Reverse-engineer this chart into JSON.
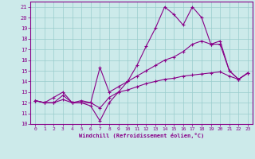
{
  "xlabel": "Windchill (Refroidissement éolien,°C)",
  "xlim": [
    -0.5,
    23.5
  ],
  "ylim": [
    10,
    21.5
  ],
  "yticks": [
    10,
    11,
    12,
    13,
    14,
    15,
    16,
    17,
    18,
    19,
    20,
    21
  ],
  "xticks": [
    0,
    1,
    2,
    3,
    4,
    5,
    6,
    7,
    8,
    9,
    10,
    11,
    12,
    13,
    14,
    15,
    16,
    17,
    18,
    19,
    20,
    21,
    22,
    23
  ],
  "bg_color": "#cceaea",
  "grid_color": "#99cccc",
  "line_color": "#880088",
  "line1_x": [
    0,
    1,
    2,
    3,
    4,
    5,
    6,
    7,
    8,
    9,
    10,
    11,
    12,
    13,
    14,
    15,
    16,
    17,
    18,
    19,
    20,
    21,
    22,
    23
  ],
  "line1_y": [
    12.2,
    12.0,
    12.0,
    12.7,
    12.0,
    12.0,
    11.7,
    10.3,
    12.0,
    13.0,
    14.0,
    15.5,
    17.3,
    19.0,
    21.0,
    20.3,
    19.3,
    21.0,
    20.0,
    17.5,
    17.8,
    15.0,
    14.2,
    14.8
  ],
  "line2_x": [
    0,
    1,
    2,
    3,
    4,
    5,
    6,
    7,
    8,
    9,
    10,
    11,
    12,
    13,
    14,
    15,
    16,
    17,
    18,
    19,
    20,
    21,
    22,
    23
  ],
  "line2_y": [
    12.2,
    12.0,
    12.5,
    13.0,
    12.0,
    12.2,
    12.0,
    15.3,
    13.0,
    13.5,
    14.0,
    14.5,
    15.0,
    15.5,
    16.0,
    16.3,
    16.8,
    17.5,
    17.8,
    17.5,
    17.5,
    15.0,
    14.2,
    14.8
  ],
  "line3_x": [
    0,
    1,
    2,
    3,
    4,
    5,
    6,
    7,
    8,
    9,
    10,
    11,
    12,
    13,
    14,
    15,
    16,
    17,
    18,
    19,
    20,
    21,
    22,
    23
  ],
  "line3_y": [
    12.2,
    12.0,
    12.0,
    12.3,
    12.0,
    12.0,
    12.0,
    11.5,
    12.5,
    13.0,
    13.2,
    13.5,
    13.8,
    14.0,
    14.2,
    14.3,
    14.5,
    14.6,
    14.7,
    14.8,
    14.9,
    14.5,
    14.2,
    14.8
  ]
}
